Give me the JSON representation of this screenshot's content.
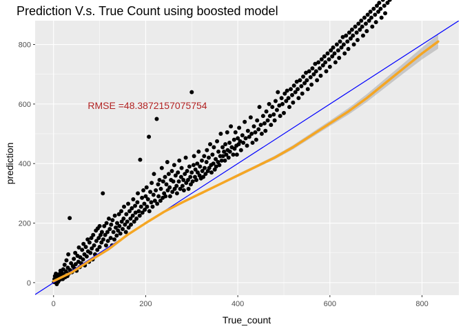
{
  "chart_data": {
    "type": "scatter",
    "title": "Prediction V.s. True Count using boosted model",
    "xlabel": "True_count",
    "ylabel": "prediction",
    "xlim": [
      -40,
      880
    ],
    "ylim": [
      -42,
      880
    ],
    "x_ticks": [
      0,
      200,
      400,
      600,
      800
    ],
    "y_ticks": [
      0,
      200,
      400,
      600,
      800
    ],
    "x_tick_labels": [
      "0",
      "200",
      "400",
      "600",
      "800"
    ],
    "y_tick_labels": [
      "0",
      "200",
      "400",
      "600",
      "800"
    ],
    "grid": true,
    "panel_background": "#ebebeb",
    "point_color": "#000000",
    "annotation": {
      "text": "RMSE =48.3872157075754",
      "x": 200,
      "y": 597,
      "color": "#b22222"
    },
    "reference_line": {
      "type": "identity",
      "slope": 1,
      "intercept": 0,
      "color": "#0000ff"
    },
    "smooth_line": {
      "color": "#f5a623",
      "ribbon_color": "#999999",
      "x": [
        0,
        40,
        80,
        120,
        160,
        200,
        240,
        280,
        320,
        360,
        400,
        440,
        480,
        520,
        560,
        600,
        640,
        680,
        720,
        760,
        800,
        835
      ],
      "y": [
        5,
        35,
        75,
        113,
        160,
        200,
        238,
        270,
        300,
        330,
        360,
        390,
        420,
        455,
        495,
        535,
        575,
        620,
        670,
        720,
        770,
        810
      ],
      "ribbon_halfwidth": [
        8,
        6,
        5,
        5,
        4,
        4,
        4,
        4,
        4,
        4,
        5,
        5,
        6,
        7,
        8,
        9,
        11,
        13,
        15,
        17,
        20,
        24
      ]
    },
    "points": [
      [
        1,
        2
      ],
      [
        2,
        12
      ],
      [
        3,
        22
      ],
      [
        4,
        8
      ],
      [
        5,
        30
      ],
      [
        6,
        15
      ],
      [
        7,
        -5
      ],
      [
        8,
        25
      ],
      [
        9,
        18
      ],
      [
        10,
        3
      ],
      [
        12,
        28
      ],
      [
        14,
        10
      ],
      [
        15,
        40
      ],
      [
        16,
        20
      ],
      [
        18,
        33
      ],
      [
        20,
        12
      ],
      [
        21,
        45
      ],
      [
        22,
        28
      ],
      [
        24,
        60
      ],
      [
        25,
        18
      ],
      [
        27,
        38
      ],
      [
        28,
        75
      ],
      [
        30,
        22
      ],
      [
        31,
        50
      ],
      [
        32,
        95
      ],
      [
        33,
        30
      ],
      [
        35,
        217
      ],
      [
        36,
        42
      ],
      [
        38,
        65
      ],
      [
        40,
        35
      ],
      [
        42,
        55
      ],
      [
        44,
        80
      ],
      [
        45,
        48
      ],
      [
        47,
        100
      ],
      [
        48,
        62
      ],
      [
        50,
        40
      ],
      [
        52,
        90
      ],
      [
        54,
        70
      ],
      [
        55,
        118
      ],
      [
        57,
        52
      ],
      [
        58,
        85
      ],
      [
        60,
        65
      ],
      [
        62,
        110
      ],
      [
        64,
        78
      ],
      [
        65,
        130
      ],
      [
        67,
        95
      ],
      [
        68,
        58
      ],
      [
        70,
        120
      ],
      [
        72,
        88
      ],
      [
        74,
        145
      ],
      [
        75,
        105
      ],
      [
        77,
        70
      ],
      [
        78,
        135
      ],
      [
        80,
        100
      ],
      [
        82,
        150
      ],
      [
        83,
        115
      ],
      [
        85,
        78
      ],
      [
        86,
        160
      ],
      [
        88,
        125
      ],
      [
        90,
        95
      ],
      [
        92,
        175
      ],
      [
        93,
        140
      ],
      [
        95,
        110
      ],
      [
        96,
        182
      ],
      [
        98,
        150
      ],
      [
        100,
        120
      ],
      [
        100,
        190
      ],
      [
        102,
        160
      ],
      [
        104,
        135
      ],
      [
        105,
        170
      ],
      [
        107,
        300
      ],
      [
        108,
        145
      ],
      [
        110,
        190
      ],
      [
        112,
        160
      ],
      [
        114,
        125
      ],
      [
        115,
        200
      ],
      [
        117,
        170
      ],
      [
        118,
        140
      ],
      [
        120,
        215
      ],
      [
        122,
        180
      ],
      [
        124,
        150
      ],
      [
        125,
        195
      ],
      [
        127,
        125
      ],
      [
        128,
        210
      ],
      [
        130,
        170
      ],
      [
        132,
        145
      ],
      [
        133,
        225
      ],
      [
        135,
        185
      ],
      [
        137,
        158
      ],
      [
        138,
        200
      ],
      [
        140,
        175
      ],
      [
        142,
        230
      ],
      [
        143,
        190
      ],
      [
        145,
        165
      ],
      [
        147,
        240
      ],
      [
        148,
        205
      ],
      [
        150,
        180
      ],
      [
        152,
        215
      ],
      [
        153,
        255
      ],
      [
        155,
        195
      ],
      [
        157,
        170
      ],
      [
        158,
        230
      ],
      [
        160,
        205
      ],
      [
        162,
        265
      ],
      [
        163,
        185
      ],
      [
        165,
        240
      ],
      [
        167,
        215
      ],
      [
        168,
        195
      ],
      [
        170,
        250
      ],
      [
        172,
        225
      ],
      [
        173,
        280
      ],
      [
        175,
        205
      ],
      [
        177,
        258
      ],
      [
        178,
        235
      ],
      [
        180,
        215
      ],
      [
        182,
        270
      ],
      [
        183,
        300
      ],
      [
        185,
        240
      ],
      [
        187,
        225
      ],
      [
        188,
        413
      ],
      [
        190,
        255
      ],
      [
        192,
        285
      ],
      [
        193,
        235
      ],
      [
        195,
        310
      ],
      [
        197,
        265
      ],
      [
        198,
        245
      ],
      [
        200,
        290
      ],
      [
        202,
        320
      ],
      [
        203,
        255
      ],
      [
        205,
        280
      ],
      [
        207,
        490
      ],
      [
        208,
        240
      ],
      [
        210,
        305
      ],
      [
        212,
        270
      ],
      [
        213,
        335
      ],
      [
        215,
        255
      ],
      [
        217,
        295
      ],
      [
        218,
        365
      ],
      [
        220,
        275
      ],
      [
        222,
        310
      ],
      [
        224,
        550
      ],
      [
        225,
        265
      ],
      [
        227,
        330
      ],
      [
        228,
        290
      ],
      [
        230,
        345
      ],
      [
        232,
        275
      ],
      [
        233,
        315
      ],
      [
        235,
        385
      ],
      [
        237,
        285
      ],
      [
        238,
        340
      ],
      [
        240,
        300
      ],
      [
        242,
        355
      ],
      [
        243,
        290
      ],
      [
        245,
        330
      ],
      [
        247,
        405
      ],
      [
        248,
        310
      ],
      [
        250,
        365
      ],
      [
        252,
        320
      ],
      [
        253,
        290
      ],
      [
        255,
        345
      ],
      [
        257,
        375
      ],
      [
        258,
        305
      ],
      [
        260,
        340
      ],
      [
        262,
        395
      ],
      [
        263,
        315
      ],
      [
        265,
        360
      ],
      [
        267,
        325
      ],
      [
        268,
        300
      ],
      [
        270,
        370
      ],
      [
        272,
        340
      ],
      [
        273,
        410
      ],
      [
        275,
        315
      ],
      [
        277,
        355
      ],
      [
        278,
        385
      ],
      [
        280,
        325
      ],
      [
        282,
        345
      ],
      [
        283,
        310
      ],
      [
        285,
        365
      ],
      [
        287,
        420
      ],
      [
        288,
        335
      ],
      [
        290,
        375
      ],
      [
        292,
        345
      ],
      [
        293,
        315
      ],
      [
        295,
        390
      ],
      [
        297,
        355
      ],
      [
        298,
        330
      ],
      [
        300,
        370
      ],
      [
        300,
        640
      ],
      [
        302,
        340
      ],
      [
        304,
        395
      ],
      [
        305,
        425
      ],
      [
        307,
        355
      ],
      [
        308,
        380
      ],
      [
        310,
        345
      ],
      [
        312,
        400
      ],
      [
        313,
        370
      ],
      [
        315,
        440
      ],
      [
        317,
        360
      ],
      [
        318,
        390
      ],
      [
        320,
        350
      ],
      [
        322,
        410
      ],
      [
        323,
        375
      ],
      [
        325,
        355
      ],
      [
        327,
        425
      ],
      [
        328,
        385
      ],
      [
        330,
        365
      ],
      [
        332,
        405
      ],
      [
        333,
        445
      ],
      [
        335,
        375
      ],
      [
        337,
        420
      ],
      [
        338,
        385
      ],
      [
        340,
        465
      ],
      [
        342,
        395
      ],
      [
        343,
        370
      ],
      [
        345,
        430
      ],
      [
        347,
        400
      ],
      [
        348,
        455
      ],
      [
        350,
        380
      ],
      [
        352,
        415
      ],
      [
        353,
        390
      ],
      [
        355,
        475
      ],
      [
        357,
        405
      ],
      [
        358,
        440
      ],
      [
        360,
        395
      ],
      [
        362,
        425
      ],
      [
        363,
        500
      ],
      [
        365,
        410
      ],
      [
        367,
        455
      ],
      [
        368,
        425
      ],
      [
        370,
        440
      ],
      [
        372,
        410
      ],
      [
        373,
        465
      ],
      [
        375,
        430
      ],
      [
        377,
        505
      ],
      [
        378,
        445
      ],
      [
        380,
        420
      ],
      [
        382,
        470
      ],
      [
        383,
        440
      ],
      [
        385,
        525
      ],
      [
        387,
        455
      ],
      [
        390,
        430
      ],
      [
        392,
        480
      ],
      [
        393,
        450
      ],
      [
        395,
        505
      ],
      [
        397,
        460
      ],
      [
        398,
        430
      ],
      [
        400,
        485
      ],
      [
        402,
        465
      ],
      [
        403,
        520
      ],
      [
        405,
        475
      ],
      [
        407,
        445
      ],
      [
        410,
        495
      ],
      [
        412,
        470
      ],
      [
        415,
        540
      ],
      [
        417,
        485
      ],
      [
        420,
        460
      ],
      [
        422,
        510
      ],
      [
        425,
        490
      ],
      [
        428,
        555
      ],
      [
        430,
        500
      ],
      [
        432,
        470
      ],
      [
        435,
        525
      ],
      [
        438,
        505
      ],
      [
        440,
        480
      ],
      [
        442,
        545
      ],
      [
        445,
        515
      ],
      [
        447,
        590
      ],
      [
        450,
        530
      ],
      [
        452,
        500
      ],
      [
        455,
        560
      ],
      [
        458,
        535
      ],
      [
        460,
        510
      ],
      [
        462,
        575
      ],
      [
        465,
        545
      ],
      [
        468,
        600
      ],
      [
        470,
        560
      ],
      [
        472,
        530
      ],
      [
        475,
        590
      ],
      [
        478,
        565
      ],
      [
        480,
        545
      ],
      [
        482,
        610
      ],
      [
        485,
        580
      ],
      [
        487,
        640
      ],
      [
        490,
        595
      ],
      [
        492,
        560
      ],
      [
        495,
        620
      ],
      [
        497,
        600
      ],
      [
        500,
        570
      ],
      [
        502,
        635
      ],
      [
        505,
        610
      ],
      [
        507,
        645
      ],
      [
        510,
        620
      ],
      [
        512,
        590
      ],
      [
        515,
        650
      ],
      [
        518,
        630
      ],
      [
        520,
        605
      ],
      [
        522,
        662
      ],
      [
        525,
        640
      ],
      [
        528,
        675
      ],
      [
        530,
        650
      ],
      [
        532,
        620
      ],
      [
        535,
        680
      ],
      [
        538,
        660
      ],
      [
        540,
        635
      ],
      [
        542,
        692
      ],
      [
        545,
        670
      ],
      [
        548,
        705
      ],
      [
        550,
        680
      ],
      [
        552,
        650
      ],
      [
        555,
        710
      ],
      [
        558,
        690
      ],
      [
        560,
        665
      ],
      [
        562,
        720
      ],
      [
        565,
        700
      ],
      [
        568,
        735
      ],
      [
        570,
        710
      ],
      [
        572,
        680
      ],
      [
        575,
        740
      ],
      [
        578,
        720
      ],
      [
        580,
        695
      ],
      [
        582,
        750
      ],
      [
        585,
        730
      ],
      [
        588,
        760
      ],
      [
        590,
        740
      ],
      [
        592,
        710
      ],
      [
        595,
        770
      ],
      [
        598,
        750
      ],
      [
        600,
        725
      ],
      [
        602,
        780
      ],
      [
        605,
        760
      ],
      [
        607,
        790
      ],
      [
        610,
        770
      ],
      [
        612,
        740
      ],
      [
        615,
        800
      ],
      [
        618,
        780
      ],
      [
        620,
        755
      ],
      [
        622,
        810
      ],
      [
        625,
        790
      ],
      [
        628,
        825
      ],
      [
        630,
        800
      ],
      [
        632,
        770
      ],
      [
        635,
        830
      ],
      [
        638,
        810
      ],
      [
        640,
        785
      ],
      [
        642,
        840
      ],
      [
        645,
        820
      ],
      [
        648,
        850
      ],
      [
        650,
        830
      ],
      [
        652,
        800
      ],
      [
        655,
        860
      ],
      [
        658,
        840
      ],
      [
        660,
        815
      ],
      [
        662,
        870
      ],
      [
        665,
        850
      ],
      [
        668,
        880
      ],
      [
        670,
        860
      ],
      [
        672,
        830
      ],
      [
        675,
        890
      ],
      [
        678,
        870
      ],
      [
        680,
        845
      ],
      [
        682,
        900
      ],
      [
        685,
        880
      ],
      [
        688,
        910
      ],
      [
        690,
        890
      ],
      [
        692,
        860
      ],
      [
        695,
        920
      ],
      [
        698,
        900
      ],
      [
        700,
        875
      ],
      [
        702,
        930
      ],
      [
        705,
        910
      ],
      [
        707,
        940
      ],
      [
        710,
        920
      ],
      [
        712,
        890
      ],
      [
        715,
        950
      ],
      [
        718,
        930
      ],
      [
        720,
        905
      ],
      [
        722,
        960
      ],
      [
        725,
        940
      ],
      [
        728,
        975
      ],
      [
        730,
        950
      ]
    ]
  }
}
